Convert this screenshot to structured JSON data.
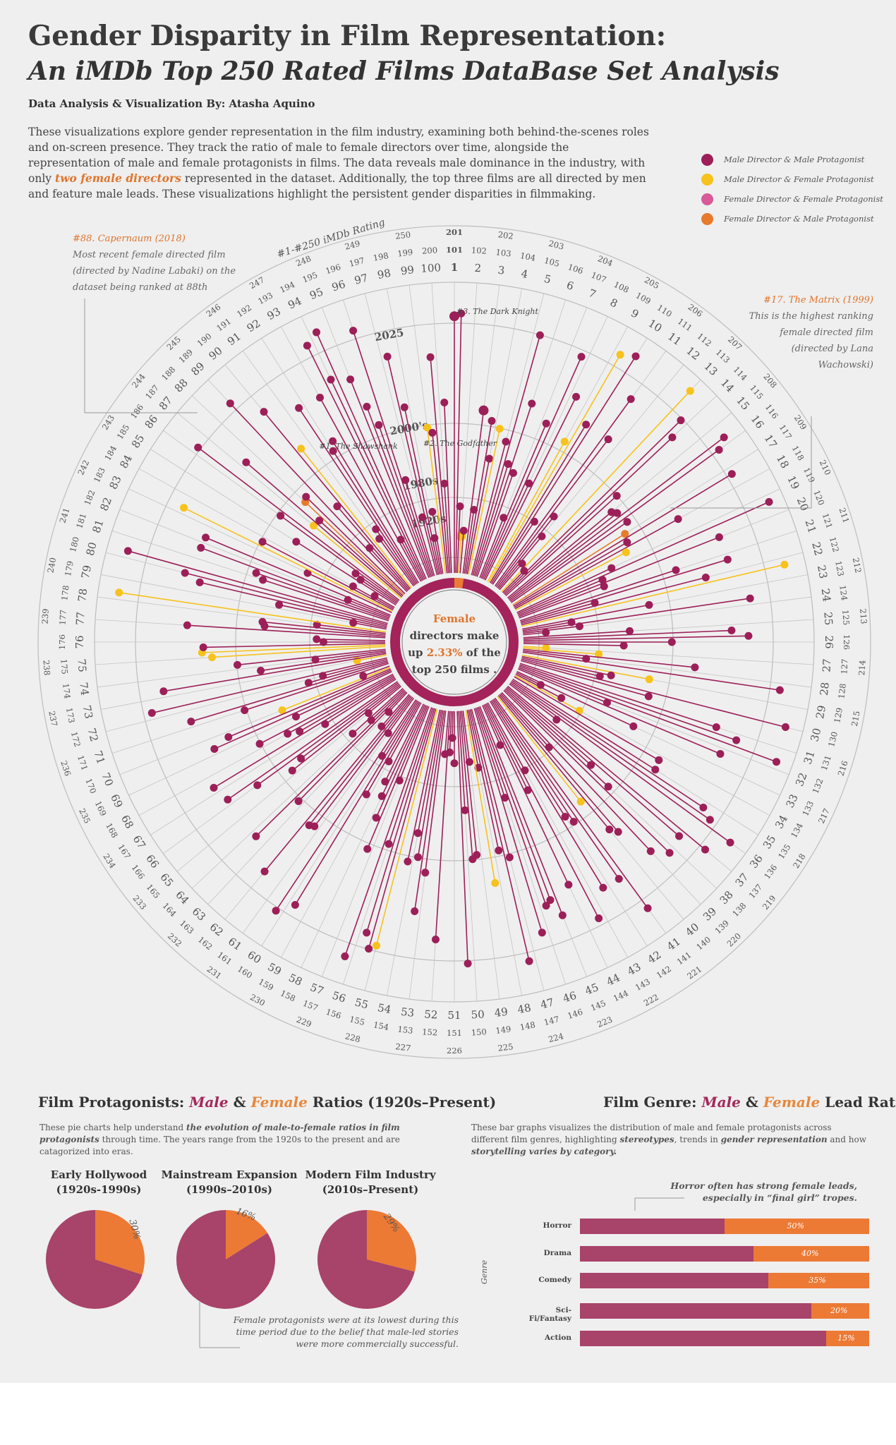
{
  "header": {
    "title": "Gender Disparity in Film Representation:",
    "subtitle": "An iMDb Top 250 Rated Films DataBase Set Analysis",
    "byline": "Data Analysis & Visualization By: Atasha Aquino",
    "intro_a": "These visualizations explore gender representation in the film industry, examining both behind-the-scenes roles and on-screen presence. They track the ratio of male to female directors over time, alongside the representation of male and female protagonists in films. The data reveals male dominance in the industry, with only ",
    "intro_hl": "two female directors",
    "intro_b": " represented in the dataset. Additionally, the top three films are all directed by men and feature male leads. These visualizations highlight the persistent gender disparities in filmmaking."
  },
  "legend": [
    {
      "label": "Male Director & Male Protagonist",
      "color": "#9c1f58"
    },
    {
      "label": "Male Director & Female Protagonist",
      "color": "#f7c21b"
    },
    {
      "label": "Female Director & Female Protagonist",
      "color": "#d85a98"
    },
    {
      "label": "Female Director & Male Protagonist",
      "color": "#e87a2b"
    }
  ],
  "radial": {
    "rating_label": "#1-#250 iMDb Rating",
    "decades": [
      "1920s",
      "1980s",
      "2000's",
      "2025"
    ],
    "center_title": "Female",
    "center_text": "directors make",
    "center_up": "up",
    "center_pct": "2.33%",
    "center_of": "of the",
    "center_tail": "top 250 films .",
    "film_labels": [
      "#1. The Shawshank",
      "#2. The Godfather",
      "#3. The Dark Knight"
    ]
  },
  "notes": {
    "capernaum_title": "#88. Capernaum (2018)",
    "capernaum_body": [
      "Most recent female directed film",
      "(directed by Nadine Labaki) on the",
      "dataset being ranked at 88th"
    ],
    "matrix_title": "#17. The Matrix (1999)",
    "matrix_body": [
      "This is the highest ranking",
      "female  directed film",
      "(directed by Lana",
      "Wachowski)"
    ]
  },
  "protagonists": {
    "heading_pre": "Film Protagonists: ",
    "heading_m": "Male",
    "heading_amp": " & ",
    "heading_f": "Female",
    "heading_post": " Ratios (1920s–Present)",
    "desc_a": "These pie charts help understand ",
    "desc_b": "the evolution of male-to-female ratios in film protagonists",
    "desc_c": " through time. The years range from the 1920s to the present and are catagorized into eras.",
    "annotation": "Female protagonists were at its lowest during this time period due to the belief that male-led stories were more commercially successful."
  },
  "genre": {
    "heading_pre": "Film Genre: ",
    "heading_m": "Male",
    "heading_amp": " & ",
    "heading_f": "Female",
    "heading_post": " Lead Ratios",
    "desc_a": "These bar graphs visualizes the distribution of male and female protagonists across different film genres, highlighting ",
    "desc_b": "stereotypes",
    "desc_c": ", trends in ",
    "desc_d": "gender representation",
    "desc_e": " and how ",
    "desc_f": "storytelling varies by category.",
    "annotation": "Horror often has strong female leads, especially in “final girl” tropes.",
    "axis": "Genre"
  },
  "chart_data": [
    {
      "type": "scatter",
      "title": "Gender Disparity in Film Representation",
      "xlabel": "#1-#250 iMDb Rating",
      "female_director_ranks": [
        17,
        88
      ],
      "female_director_share_pct": 2.33,
      "categories": [
        "Male Director & Male Protagonist",
        "Male Director & Female Protagonist",
        "Female Director & Female Protagonist",
        "Female Director & Male Protagonist"
      ]
    },
    {
      "type": "pie",
      "title": "Film Protagonists: Male & Female Ratios (1920s–Present)",
      "charts": [
        {
          "era": "Early Hollywood (1920s-1990s)",
          "female_pct": 30,
          "male_pct": 70
        },
        {
          "era": "Mainstream Expansion (1990s–2010s)",
          "female_pct": 16,
          "male_pct": 84
        },
        {
          "era": "Modern Film Industry (2010s–Present)",
          "female_pct": 29,
          "male_pct": 71
        }
      ]
    },
    {
      "type": "bar",
      "title": "Film Genre: Male & Female Lead Ratios",
      "ylabel": "Genre",
      "categories": [
        "Horror",
        "Drama",
        "Comedy",
        "Sci-Fi/Fantasy",
        "Action"
      ],
      "female_pct": [
        50,
        40,
        35,
        20,
        15
      ],
      "labels": [
        "50%",
        "40%",
        "35%",
        "20%",
        "15%"
      ]
    }
  ],
  "colors": {
    "male": "#a8436a",
    "female": "#ec7a35",
    "dot_male": "#9c1f58",
    "dot_female": "#f7c21b",
    "accent": "#e0742b"
  }
}
